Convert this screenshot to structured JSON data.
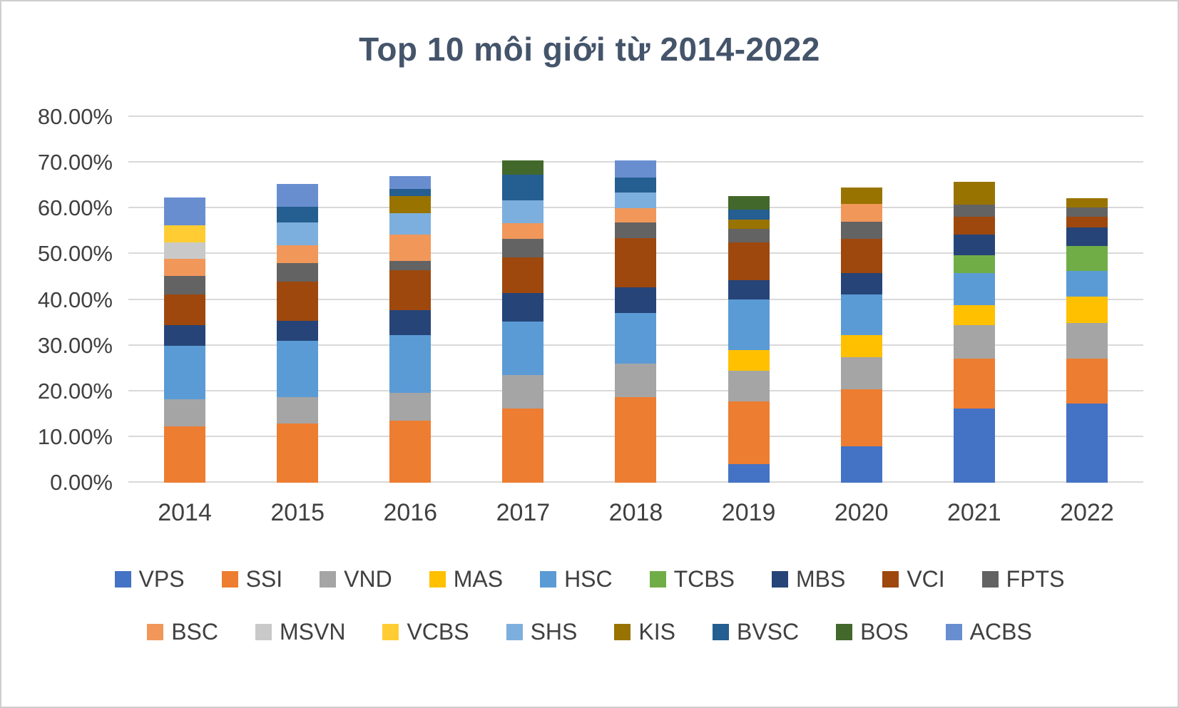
{
  "chart_data": {
    "type": "bar",
    "stacked": true,
    "title": "Top 10 môi giới từ 2014-2022",
    "title_color": "#44546A",
    "axis_label_color": "#404040",
    "gridline_color": "#D9D9D9",
    "categories": [
      "2014",
      "2015",
      "2016",
      "2017",
      "2018",
      "2019",
      "2020",
      "2021",
      "2022"
    ],
    "ylim": [
      0,
      80
    ],
    "y_tick_step": 10,
    "y_ticks": [
      "0.00%",
      "10.00%",
      "20.00%",
      "30.00%",
      "40.00%",
      "50.00%",
      "60.00%",
      "70.00%",
      "80.00%"
    ],
    "y_tick_format": "percent-2dp",
    "grid": true,
    "legend_position": "bottom",
    "legend_rows": [
      [
        "VPS",
        "SSI",
        "VND",
        "MAS",
        "HSC",
        "TCBS",
        "MBS",
        "VCI",
        "FPTS"
      ],
      [
        "BSC",
        "MSVN",
        "VCBS",
        "SHS",
        "KIS",
        "BVSC",
        "BOS",
        "ACBS"
      ]
    ],
    "series": [
      {
        "name": "VPS",
        "color": "#4472C4",
        "values": [
          0,
          0,
          0,
          0,
          0,
          4.0,
          8.0,
          16.2,
          17.3
        ]
      },
      {
        "name": "SSI",
        "color": "#ED7D31",
        "values": [
          12.3,
          13.0,
          13.5,
          16.2,
          18.7,
          13.8,
          12.5,
          11.0,
          9.9
        ]
      },
      {
        "name": "VND",
        "color": "#A5A5A5",
        "values": [
          5.9,
          5.7,
          6.2,
          7.3,
          7.3,
          6.7,
          7.0,
          7.3,
          7.8
        ]
      },
      {
        "name": "MAS",
        "color": "#FFC000",
        "values": [
          0,
          0,
          0,
          0,
          0,
          4.5,
          4.8,
          4.3,
          5.7
        ]
      },
      {
        "name": "HSC",
        "color": "#5B9BD5",
        "values": [
          11.8,
          12.3,
          12.6,
          11.8,
          11.2,
          11.0,
          8.9,
          7.0,
          5.6
        ]
      },
      {
        "name": "TCBS",
        "color": "#70AD47",
        "values": [
          0,
          0,
          0,
          0,
          0,
          0,
          0,
          4.0,
          5.5
        ]
      },
      {
        "name": "MBS",
        "color": "#264478",
        "values": [
          4.5,
          4.4,
          5.5,
          6.2,
          5.6,
          4.3,
          4.6,
          4.5,
          4.0
        ]
      },
      {
        "name": "VCI",
        "color": "#9E480E",
        "values": [
          6.6,
          8.5,
          8.7,
          7.8,
          10.7,
          8.2,
          7.5,
          3.9,
          2.4
        ]
      },
      {
        "name": "FPTS",
        "color": "#636363",
        "values": [
          4.1,
          4.2,
          2.0,
          4.0,
          3.5,
          3.0,
          3.7,
          2.6,
          2.0
        ]
      },
      {
        "name": "BSC",
        "color": "#F1975A",
        "values": [
          3.8,
          3.8,
          5.8,
          3.5,
          3.0,
          0,
          4.0,
          0,
          0
        ]
      },
      {
        "name": "MSVN",
        "color": "#C9C9C9",
        "values": [
          3.5,
          0,
          0,
          0,
          0,
          0,
          0,
          0,
          0
        ]
      },
      {
        "name": "VCBS",
        "color": "#FFCD33",
        "values": [
          3.8,
          0,
          0,
          0,
          0,
          0,
          0,
          0,
          0
        ]
      },
      {
        "name": "SHS",
        "color": "#7CAFDD",
        "values": [
          0,
          5.0,
          4.7,
          5.0,
          3.5,
          0,
          0,
          0,
          0
        ]
      },
      {
        "name": "KIS",
        "color": "#997300",
        "values": [
          0,
          0,
          3.7,
          0,
          0,
          2.0,
          3.5,
          5.0,
          2.0
        ]
      },
      {
        "name": "BVSC",
        "color": "#255E91",
        "values": [
          0,
          3.5,
          1.5,
          5.5,
          3.3,
          2.3,
          0,
          0,
          0
        ]
      },
      {
        "name": "BOS",
        "color": "#43682B",
        "values": [
          0,
          0,
          0,
          3.2,
          0,
          2.9,
          0,
          0,
          0
        ]
      },
      {
        "name": "ACBS",
        "color": "#698ED0",
        "values": [
          6.0,
          5.0,
          2.8,
          0,
          3.7,
          0,
          0,
          0,
          0
        ]
      }
    ]
  }
}
